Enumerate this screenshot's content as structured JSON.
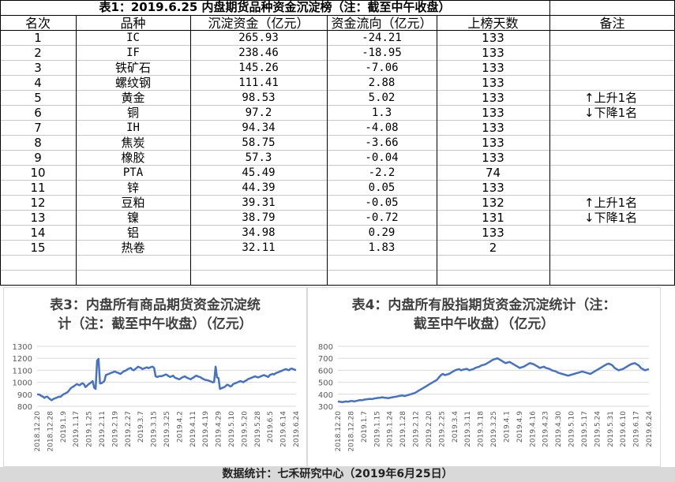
{
  "table": {
    "title": "表1：2019.6.25 内盘期货品种资金沉淀榜（注：截至中午收盘）",
    "headers": [
      "名次",
      "品种",
      "沉淀资金（亿元）",
      "资金流向（亿元）",
      "上榜天数",
      "备注"
    ],
    "rows": [
      {
        "rank": "1",
        "name": "IC",
        "fund": "265.93",
        "flow": "-24.21",
        "days": "133",
        "note": ""
      },
      {
        "rank": "2",
        "name": "IF",
        "fund": "238.46",
        "flow": "-18.95",
        "days": "133",
        "note": ""
      },
      {
        "rank": "3",
        "name": "铁矿石",
        "fund": "145.26",
        "flow": "-7.06",
        "days": "133",
        "note": ""
      },
      {
        "rank": "4",
        "name": "螺纹钢",
        "fund": "111.41",
        "flow": "2.88",
        "days": "133",
        "note": ""
      },
      {
        "rank": "5",
        "name": "黄金",
        "fund": "98.53",
        "flow": "5.02",
        "days": "133",
        "note": "↑上升1名"
      },
      {
        "rank": "6",
        "name": "铜",
        "fund": "97.2",
        "flow": "1.3",
        "days": "133",
        "note": "↓下降1名"
      },
      {
        "rank": "7",
        "name": "IH",
        "fund": "94.34",
        "flow": "-4.08",
        "days": "133",
        "note": ""
      },
      {
        "rank": "8",
        "name": "焦炭",
        "fund": "58.75",
        "flow": "-3.66",
        "days": "133",
        "note": ""
      },
      {
        "rank": "9",
        "name": "橡胶",
        "fund": "57.3",
        "flow": "-0.04",
        "days": "133",
        "note": ""
      },
      {
        "rank": "10",
        "name": "PTA",
        "fund": "45.49",
        "flow": "-2.2",
        "days": "74",
        "note": ""
      },
      {
        "rank": "11",
        "name": "锌",
        "fund": "44.39",
        "flow": "0.05",
        "days": "133",
        "note": ""
      },
      {
        "rank": "12",
        "name": "豆粕",
        "fund": "39.31",
        "flow": "-0.05",
        "days": "132",
        "note": "↑上升1名"
      },
      {
        "rank": "13",
        "name": "镍",
        "fund": "38.79",
        "flow": "-0.72",
        "days": "131",
        "note": "↓下降1名"
      },
      {
        "rank": "14",
        "name": "铝",
        "fund": "34.98",
        "flow": "0.29",
        "days": "133",
        "note": ""
      },
      {
        "rank": "15",
        "name": "热卷",
        "fund": "32.11",
        "flow": "1.83",
        "days": "2",
        "note": ""
      }
    ]
  },
  "footer": "数据统计：七禾研究中心（2019年6月25日）",
  "colors": {
    "line": "#4472c4",
    "grid": "#d9d9d9",
    "axis_text": "#595959"
  },
  "chart_data": [
    {
      "type": "line",
      "title_line1": "表3：内盘所有商品期货资金沉淀统",
      "title_line2": "计（注：截至中午收盘）（亿元）",
      "ylim": [
        800,
        1300
      ],
      "yticks": [
        800,
        900,
        1000,
        1100,
        1200,
        1300
      ],
      "xticks": [
        "2018.12.20",
        "2018.12.28",
        "2019.1.9",
        "2019.1.17",
        "2019.1.25",
        "2019.2.11",
        "2019.2.19",
        "2019.2.27",
        "2019.3.7",
        "2019.3.15",
        "2019.3.25",
        "2019.4.2",
        "2019.4.11",
        "2019.4.19",
        "2019.4.29",
        "2019.5.10",
        "2019.5.20",
        "2019.5.28",
        "2019.6.5",
        "2019.6.14",
        "2019.6.24"
      ],
      "grid": true,
      "series": [
        {
          "values": [
            900,
            898,
            895,
            885,
            880,
            870,
            878,
            880,
            868,
            858,
            850,
            860,
            865,
            870,
            875,
            880,
            878,
            890,
            900,
            905,
            912,
            920,
            935,
            950,
            960,
            965,
            975,
            985,
            980,
            975,
            985,
            992,
            985,
            960,
            970,
            982,
            990,
            1000,
            1010,
            955,
            945,
            1180,
            1195,
            990,
            992,
            1000,
            1010,
            1060,
            1065,
            1070,
            1075,
            1080,
            1085,
            1090,
            1085,
            1080,
            1075,
            1070,
            1080,
            1090,
            1095,
            1100,
            1110,
            1115,
            1120,
            1105,
            1100,
            1110,
            1120,
            1130,
            1125,
            1120,
            1110,
            1115,
            1120,
            1125,
            1118,
            1122,
            1128,
            1130,
            1120,
            1050,
            1045,
            1048,
            1052,
            1050,
            1055,
            1060,
            1065,
            1060,
            1050,
            1045,
            1050,
            1055,
            1040,
            1035,
            1030,
            1025,
            1030,
            1040,
            1045,
            1050,
            1040,
            1035,
            1030,
            1025,
            1035,
            1040,
            1050,
            1055,
            1048,
            1045,
            1040,
            1030,
            1025,
            1020,
            1018,
            1015,
            1010,
            1005,
            1000,
            1002,
            1130,
            1040,
            1035,
            945,
            950,
            955,
            960,
            970,
            980,
            975,
            965,
            970,
            985,
            990,
            995,
            1000,
            1005,
            1010,
            1005,
            1000,
            1010,
            1015,
            1025,
            1030,
            1035,
            1040,
            1045,
            1050,
            1045,
            1040,
            1045,
            1050,
            1055,
            1060,
            1055,
            1050,
            1045,
            1060,
            1065,
            1070,
            1065,
            1075,
            1080,
            1085,
            1090,
            1095,
            1100,
            1105,
            1110,
            1105,
            1100,
            1110,
            1115,
            1110,
            1105,
            1100
          ]
        }
      ]
    },
    {
      "type": "line",
      "title_line1": "表4：内盘所有股指期货资金沉淀统计（注：",
      "title_line2": "截至中午收盘）（亿元）",
      "ylim": [
        300,
        800
      ],
      "yticks": [
        300,
        400,
        500,
        600,
        700,
        800
      ],
      "xticks": [
        "2018.12.20",
        "2018.12.28",
        "2019.1.7",
        "2019.1.15",
        "2019.1.24",
        "2019.1.28",
        "2019.2.12",
        "2019.2.20",
        "2019.2.25",
        "2019.3.4",
        "2019.3.11",
        "2019.3.18",
        "2019.3.25",
        "2019.4.1",
        "2019.4.9",
        "2019.4.16",
        "2019.4.23",
        "2019.4.30",
        "2019.5.10",
        "2019.5.17",
        "2019.5.24",
        "2019.5.31",
        "2019.6.10",
        "2019.6.17",
        "2019.6.24"
      ],
      "grid": true,
      "series": [
        {
          "values": [
            340,
            338,
            335,
            337,
            340,
            338,
            342,
            345,
            340,
            344,
            348,
            352,
            350,
            355,
            358,
            360,
            362,
            360,
            365,
            368,
            370,
            372,
            375,
            372,
            370,
            368,
            372,
            375,
            378,
            380,
            385,
            388,
            390,
            385,
            390,
            395,
            400,
            405,
            410,
            420,
            430,
            440,
            450,
            460,
            470,
            480,
            490,
            500,
            510,
            520,
            540,
            560,
            570,
            560,
            565,
            570,
            580,
            590,
            600,
            605,
            610,
            600,
            605,
            610,
            612,
            600,
            605,
            610,
            620,
            625,
            630,
            640,
            645,
            650,
            660,
            670,
            680,
            690,
            695,
            700,
            690,
            680,
            670,
            660,
            665,
            670,
            660,
            650,
            640,
            630,
            620,
            625,
            630,
            640,
            650,
            660,
            655,
            650,
            640,
            630,
            620,
            625,
            630,
            620,
            615,
            610,
            600,
            595,
            590,
            580,
            575,
            570,
            565,
            560,
            555,
            560,
            565,
            570,
            575,
            580,
            585,
            590,
            585,
            580,
            575,
            570,
            580,
            590,
            600,
            610,
            620,
            630,
            640,
            650,
            655,
            650,
            640,
            620,
            610,
            600,
            605,
            610,
            620,
            630,
            640,
            650,
            655,
            660,
            650,
            640,
            620,
            610,
            600,
            605,
            610
          ]
        }
      ]
    }
  ]
}
